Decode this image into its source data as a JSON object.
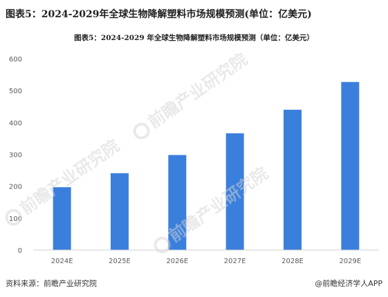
{
  "header": {
    "title": "图表5：2024-2029年全球生物降解塑料市场规模预测(单位：亿美元)"
  },
  "chart_data": {
    "type": "bar",
    "title": "图表5：2024-2029 年全球生物降解塑料市场规模预测（单位：亿美元）",
    "categories": [
      "2024E",
      "2025E",
      "2026E",
      "2027E",
      "2028E",
      "2029E"
    ],
    "values": [
      197,
      241,
      298,
      366,
      440,
      527
    ],
    "xlabel": "",
    "ylabel": "",
    "ylim": [
      0,
      600
    ],
    "yticks": [
      0,
      100,
      200,
      300,
      400,
      500,
      600
    ],
    "grid": false,
    "legend": "none",
    "bar_color": "#3b7fdd"
  },
  "footer": {
    "source": "资料来源：前瞻产业研究院",
    "credit": "@前瞻经济学人APP"
  },
  "watermark": {
    "text": "前瞻产业研究院"
  }
}
